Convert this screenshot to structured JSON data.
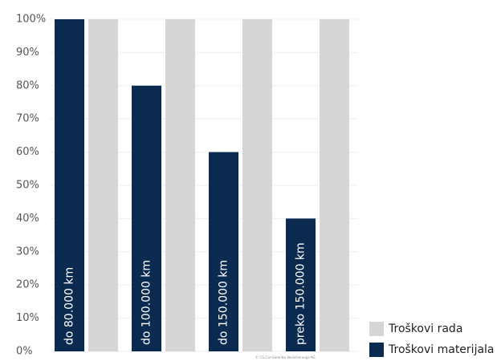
{
  "chart_data": {
    "type": "bar",
    "categories": [
      "do 80.000 km",
      "do 100.000 km",
      "do 150.000 km",
      "preko 150.000 km"
    ],
    "series": [
      {
        "name": "Troškovi materijala",
        "color": "#0b2a50",
        "values": [
          100,
          80,
          60,
          40
        ]
      },
      {
        "name": "Troškovi rada",
        "color": "#d6d6d6",
        "values": [
          100,
          100,
          100,
          100
        ]
      }
    ],
    "ylim": [
      0,
      100
    ],
    "yticks": [
      {
        "value": 0,
        "label": "0%"
      },
      {
        "value": 10,
        "label": "10%"
      },
      {
        "value": 20,
        "label": "20%"
      },
      {
        "value": 30,
        "label": "30%"
      },
      {
        "value": 40,
        "label": "40%"
      },
      {
        "value": 50,
        "label": "50%"
      },
      {
        "value": 60,
        "label": "60%"
      },
      {
        "value": 70,
        "label": "70%"
      },
      {
        "value": 80,
        "label": "80%"
      },
      {
        "value": 90,
        "label": "90%"
      },
      {
        "value": 100,
        "label": "100%"
      }
    ],
    "grid": true,
    "source": "© CG Car-Garantie Versicherungs-AG"
  }
}
